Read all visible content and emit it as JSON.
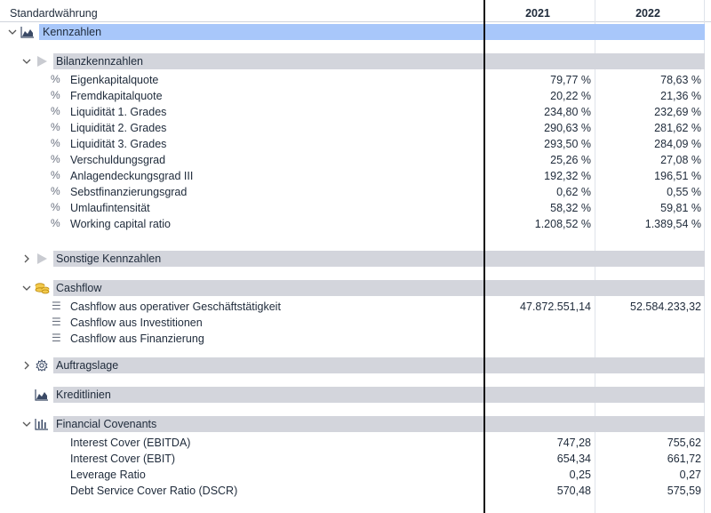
{
  "header": {
    "currency_label": "Standardwährung",
    "year_1": "2021",
    "year_2": "2022"
  },
  "sections": {
    "kennzahlen": {
      "label": "Kennzahlen"
    },
    "bilanz": {
      "label": "Bilanzkennzahlen",
      "rows": [
        {
          "label": "Eigenkapitalquote",
          "v2021": "79,77 %",
          "v2022": "78,63 %"
        },
        {
          "label": "Fremdkapitalquote",
          "v2021": "20,22 %",
          "v2022": "21,36 %"
        },
        {
          "label": "Liquidität 1. Grades",
          "v2021": "234,80 %",
          "v2022": "232,69 %"
        },
        {
          "label": "Liquidität 2. Grades",
          "v2021": "290,63 %",
          "v2022": "281,62 %"
        },
        {
          "label": "Liquidität 3. Grades",
          "v2021": "293,50 %",
          "v2022": "284,09 %"
        },
        {
          "label": "Verschuldungsgrad",
          "v2021": "25,26 %",
          "v2022": "27,08 %"
        },
        {
          "label": "Anlagendeckungsgrad III",
          "v2021": "192,32 %",
          "v2022": "196,51 %"
        },
        {
          "label": "Sebstfinanzierungsgrad",
          "v2021": "0,62 %",
          "v2022": "0,55 %"
        },
        {
          "label": "Umlaufintensität",
          "v2021": "58,32 %",
          "v2022": "59,81 %"
        },
        {
          "label": "Working capital ratio",
          "v2021": "1.208,52 %",
          "v2022": "1.389,54 %"
        }
      ]
    },
    "sonstige": {
      "label": "Sonstige Kennzahlen"
    },
    "cashflow": {
      "label": "Cashflow",
      "rows": [
        {
          "label": "Cashflow aus operativer Geschäftstätigkeit",
          "v2021": "47.872.551,14",
          "v2022": "52.584.233,32"
        },
        {
          "label": "Cashflow aus Investitionen",
          "v2021": "",
          "v2022": ""
        },
        {
          "label": "Cashflow aus Finanzierung",
          "v2021": "",
          "v2022": ""
        }
      ]
    },
    "auftragslage": {
      "label": "Auftragslage"
    },
    "kreditlinien": {
      "label": "Kreditlinien"
    },
    "covenants": {
      "label": "Financial Covenants",
      "rows": [
        {
          "label": "Interest Cover (EBITDA)",
          "v2021": "747,28",
          "v2022": "755,62"
        },
        {
          "label": "Interest Cover (EBIT)",
          "v2021": "654,34",
          "v2022": "661,72"
        },
        {
          "label": "Leverage Ratio",
          "v2021": "0,25",
          "v2022": "0,27"
        },
        {
          "label": "Debt Service Cover Ratio (DSCR)",
          "v2021": "570,48",
          "v2022": "575,59"
        }
      ]
    }
  },
  "icons": {
    "percent": "%",
    "list": "☰"
  },
  "colors": {
    "top_group_bar": "#a8c7fa",
    "sub_group_bar": "#d3d5dc",
    "text": "#1e2a3a"
  }
}
